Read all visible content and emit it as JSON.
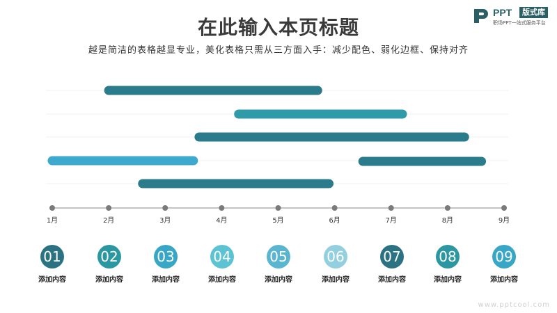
{
  "header": {
    "title": "在此输入本页标题",
    "subtitle": "越是简洁的表格越显专业，美化表格只需从三方面入手：减少配色、弱化边框、保持对齐"
  },
  "logo": {
    "word": "PPT",
    "badge": "版式库",
    "tagline": "职场PPT一站式服务平台"
  },
  "chart_data": {
    "type": "gantt",
    "x_ticks": [
      "1月",
      "2月",
      "3月",
      "4月",
      "5月",
      "6月",
      "7月",
      "8月",
      "9月"
    ],
    "xlim": [
      1,
      9
    ],
    "rows": [
      {
        "start": 2.0,
        "end": 5.7,
        "color": "#2a7b8c"
      },
      {
        "start": 4.3,
        "end": 7.2,
        "color": "#2f9aa8"
      },
      {
        "start": 3.6,
        "end": 8.3,
        "color": "#2a7b8c"
      },
      {
        "start": 1.0,
        "end": 3.5,
        "color": "#3da9cf"
      },
      {
        "start": 6.5,
        "end": 8.6,
        "color": "#2a7b8c"
      },
      {
        "start": 2.6,
        "end": 5.9,
        "color": "#2a7b8c"
      }
    ]
  },
  "items": [
    {
      "num": "01",
      "label": "添加内容",
      "color": "#2b7283"
    },
    {
      "num": "02",
      "label": "添加内容",
      "color": "#2b97a1"
    },
    {
      "num": "03",
      "label": "添加内容",
      "color": "#38a6c6"
    },
    {
      "num": "04",
      "label": "添加内容",
      "color": "#5bc3d2"
    },
    {
      "num": "05",
      "label": "添加内容",
      "color": "#5ab5d0"
    },
    {
      "num": "06",
      "label": "添加内容",
      "color": "#92cfdf"
    },
    {
      "num": "07",
      "label": "添加内容",
      "color": "#2b7283"
    },
    {
      "num": "08",
      "label": "添加内容",
      "color": "#2b97a1"
    },
    {
      "num": "09",
      "label": "添加内容",
      "color": "#38a6c6"
    }
  ],
  "watermark": "www.pptcool.com"
}
